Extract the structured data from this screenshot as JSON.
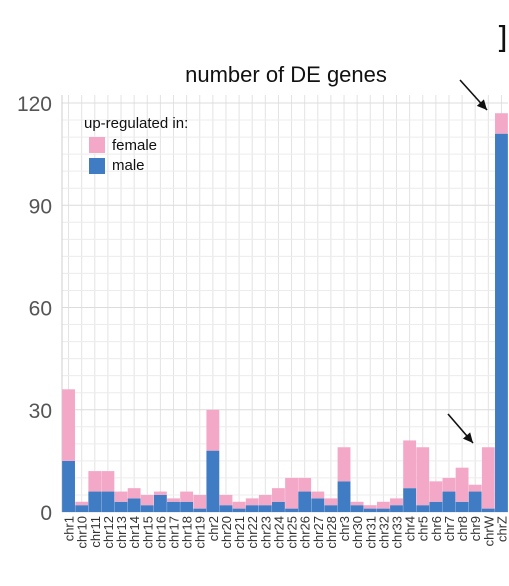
{
  "chart_data": {
    "type": "bar",
    "stacked": true,
    "title": "number of DE genes",
    "ylim": [
      0,
      120
    ],
    "yticks": [
      0,
      30,
      60,
      90,
      120
    ],
    "grid": true,
    "legend": {
      "title": "up-regulated in:",
      "placement": "top-left"
    },
    "categories": [
      "chr1",
      "chr10",
      "chr11",
      "chr12",
      "chr13",
      "chr14",
      "chr15",
      "chr16",
      "chr17",
      "chr18",
      "chr19",
      "chr2",
      "chr20",
      "chr21",
      "chr22",
      "chr23",
      "chr24",
      "chr25",
      "chr26",
      "chr27",
      "chr28",
      "chr3",
      "chr30",
      "chr31",
      "chr32",
      "chr33",
      "chr4",
      "chr5",
      "chr6",
      "chr7",
      "chr8",
      "chr9",
      "chrW",
      "chrZ"
    ],
    "series": [
      {
        "name": "male",
        "color": "#3f7cc4",
        "values": [
          15,
          2,
          6,
          6,
          3,
          4,
          2,
          5,
          3,
          3,
          1,
          18,
          2,
          1,
          2,
          2,
          3,
          1,
          6,
          4,
          2,
          9,
          2,
          1,
          1,
          2,
          7,
          2,
          3,
          6,
          3,
          6,
          1,
          111
        ]
      },
      {
        "name": "female",
        "color": "#f4a8c8",
        "values": [
          21,
          1,
          6,
          6,
          3,
          3,
          3,
          1,
          1,
          3,
          4,
          12,
          3,
          2,
          2,
          3,
          4,
          9,
          4,
          2,
          2,
          10,
          1,
          1,
          2,
          2,
          14,
          17,
          6,
          4,
          10,
          2,
          18,
          6
        ]
      }
    ],
    "bracket_glyph": "]",
    "arrows": [
      {
        "label": "arrow-to-chrZ",
        "target": "chrZ"
      },
      {
        "label": "arrow-to-chrW",
        "target": "chrW"
      }
    ]
  }
}
